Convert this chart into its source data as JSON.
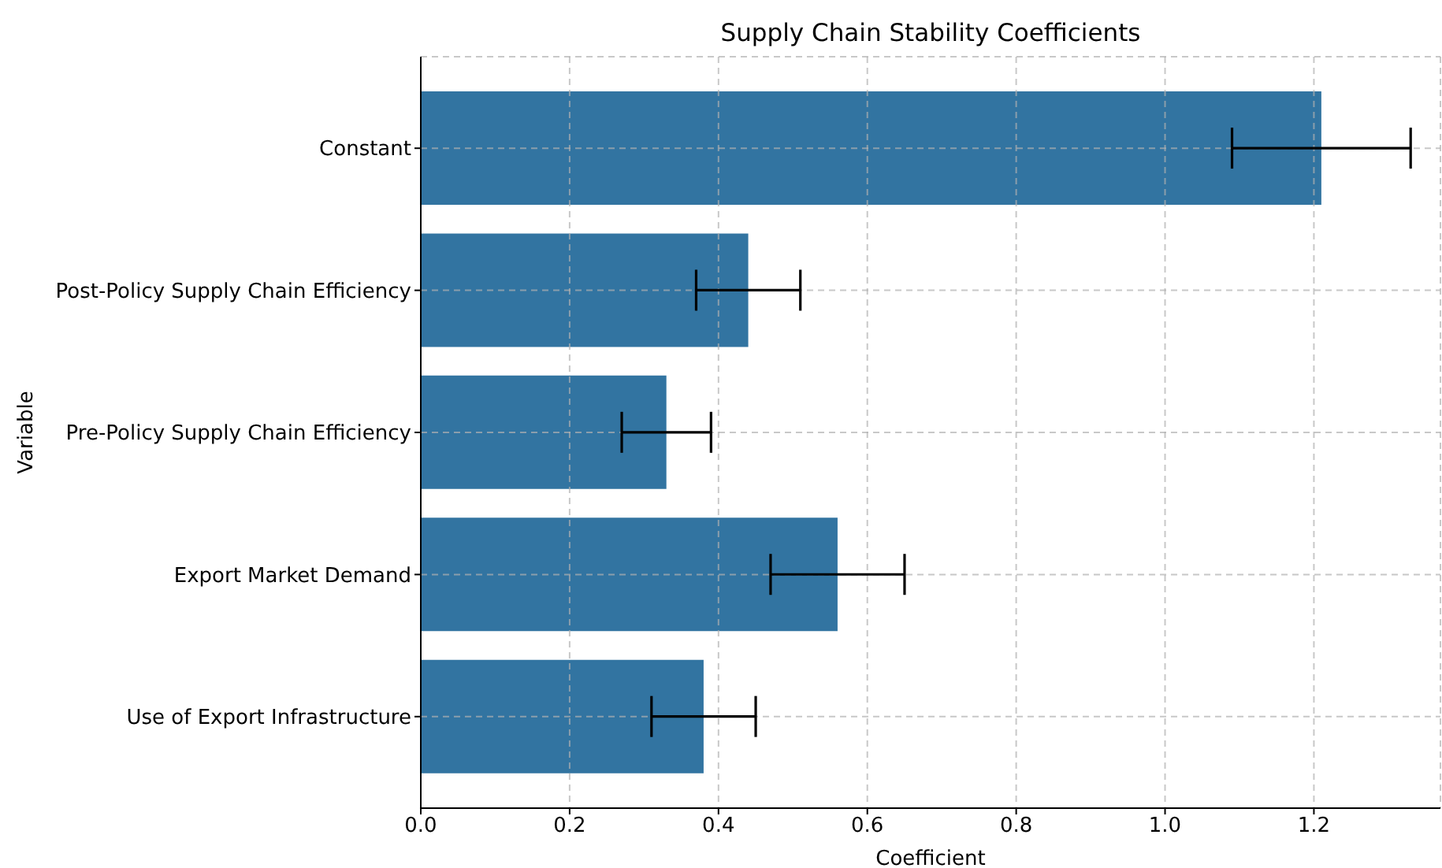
{
  "chart_data": {
    "type": "bar",
    "orientation": "horizontal",
    "title": "Supply Chain Stability Coefficients",
    "xlabel": "Coefficient",
    "ylabel": "Variable",
    "categories": [
      "Constant",
      "Post-Policy Supply Chain Efficiency",
      "Pre-Policy Supply Chain Efficiency",
      "Export Market Demand",
      "Use of Export Infrastructure"
    ],
    "values": [
      1.21,
      0.44,
      0.33,
      0.56,
      0.38
    ],
    "errors": [
      0.12,
      0.07,
      0.06,
      0.09,
      0.07
    ],
    "color": "#3274a1",
    "xlim": [
      0,
      1.37
    ],
    "xticks": [
      {
        "value": 0,
        "label": "0.0"
      },
      0.2,
      0.4,
      0.6,
      0.8,
      {
        "value": 1,
        "label": "1.0"
      },
      1.2
    ],
    "grid": true
  }
}
